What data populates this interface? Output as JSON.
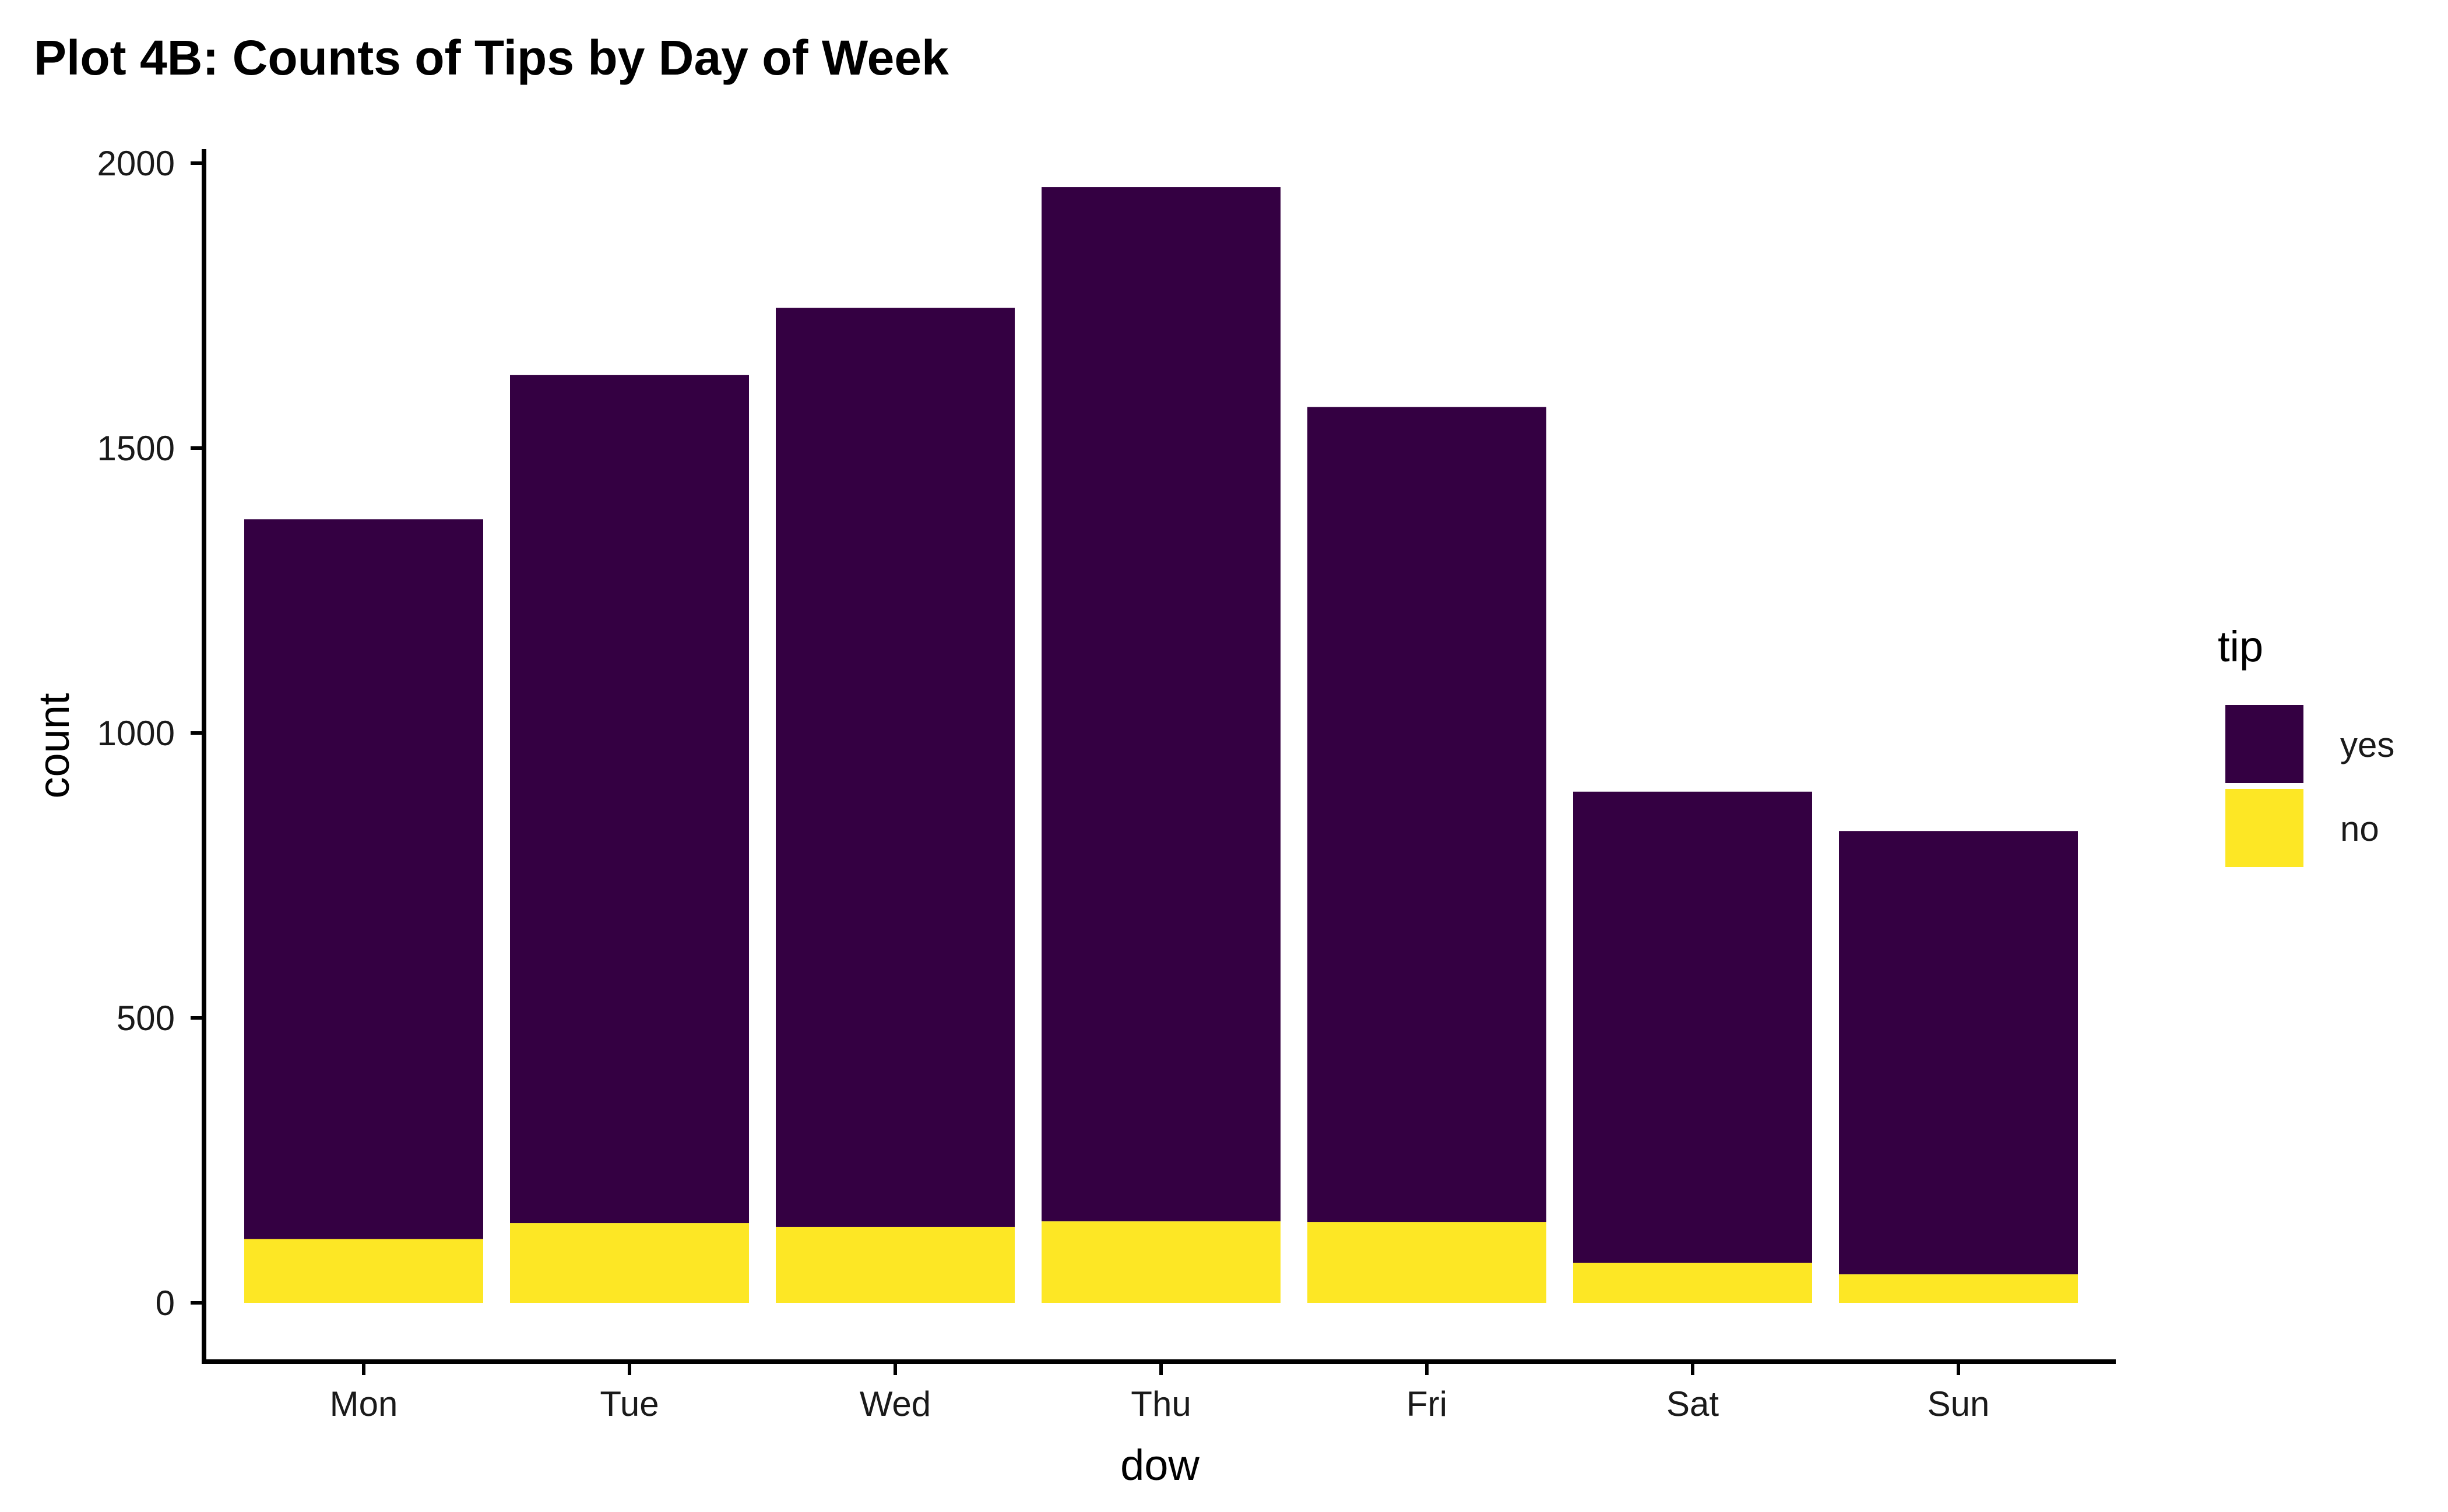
{
  "chart_data": {
    "type": "bar",
    "stacked": true,
    "title": "Plot 4B: Counts of Tips by Day of Week",
    "xlabel": "dow",
    "ylabel": "count",
    "categories": [
      "Mon",
      "Tue",
      "Wed",
      "Thu",
      "Fri",
      "Sat",
      "Sun"
    ],
    "series": [
      {
        "name": "no",
        "color": "#FDE725",
        "values": [
          112,
          140,
          133,
          143,
          142,
          70,
          50
        ]
      },
      {
        "name": "yes",
        "color": "#340042",
        "values": [
          1263,
          1488,
          1613,
          1815,
          1430,
          827,
          778
        ]
      }
    ],
    "totals": [
      1375,
      1628,
      1746,
      1958,
      1572,
      897,
      828
    ],
    "ylim": [
      0,
      2000
    ],
    "yticks": [
      0,
      500,
      1000,
      1500,
      2000
    ],
    "grid": false,
    "legend": {
      "title": "tip",
      "placement": "right",
      "entries": [
        {
          "label": "yes",
          "color": "#340042"
        },
        {
          "label": "no",
          "color": "#FDE725"
        }
      ]
    }
  }
}
